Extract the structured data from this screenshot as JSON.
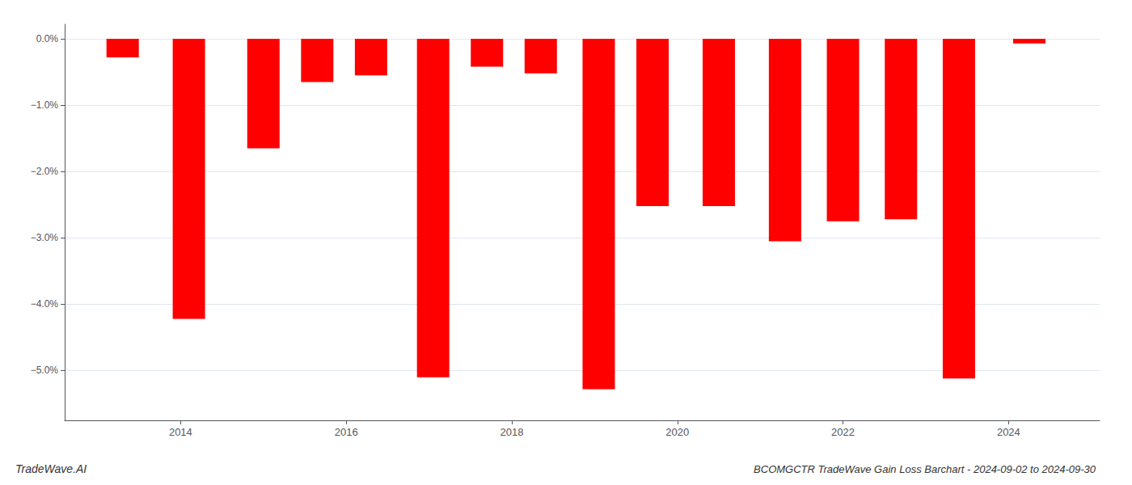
{
  "chart_data": {
    "type": "bar",
    "title": "BCOMGCTR TradeWave Gain Loss Barchart - 2024-09-02 to 2024-09-30",
    "annotations": [
      "TradeWave.AI"
    ],
    "x": [
      2013.3,
      2014.1,
      2015.0,
      2015.65,
      2016.3,
      2017.05,
      2017.7,
      2018.35,
      2019.05,
      2019.7,
      2020.5,
      2021.3,
      2022.0,
      2022.7,
      2023.4,
      2024.25
    ],
    "values": [
      -0.28,
      -4.22,
      -1.65,
      -0.65,
      -0.55,
      -5.1,
      -0.42,
      -0.52,
      -5.28,
      -2.52,
      -2.52,
      -3.05,
      -2.75,
      -2.72,
      -5.12,
      -0.07
    ],
    "color": "#ff0000",
    "xlim": [
      2012.6,
      2025.1
    ],
    "xticks": [
      2014,
      2016,
      2018,
      2020,
      2022,
      2024
    ],
    "ylim": [
      -5.75,
      0.22
    ],
    "yticks": [
      {
        "value": 0.0,
        "label": "0.0%"
      },
      {
        "value": -1.0,
        "label": "−1.0%"
      },
      {
        "value": -2.0,
        "label": "−2.0%"
      },
      {
        "value": -3.0,
        "label": "−3.0%"
      },
      {
        "value": -4.0,
        "label": "−4.0%"
      },
      {
        "value": -5.0,
        "label": "−5.0%"
      }
    ],
    "grid": true
  }
}
